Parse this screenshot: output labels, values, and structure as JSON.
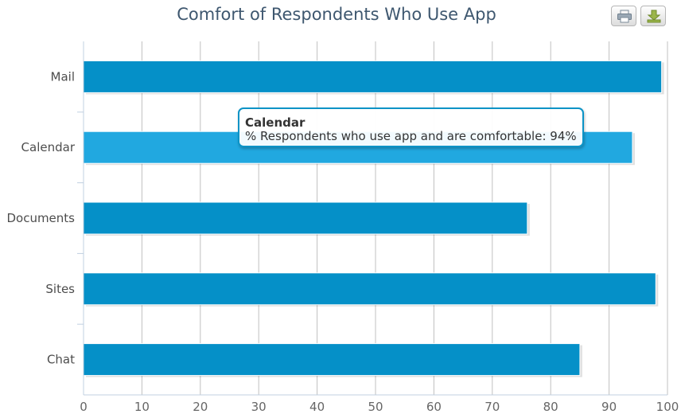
{
  "chart_data": {
    "type": "bar",
    "orientation": "horizontal",
    "title": "Comfort of Respondents Who Use App",
    "categories": [
      "Mail",
      "Calendar",
      "Documents",
      "Sites",
      "Chat"
    ],
    "series": [
      {
        "name": "% Respondents who use app and are comfortable",
        "values": [
          99,
          94,
          76,
          98,
          85
        ]
      }
    ],
    "xlim": [
      0,
      100
    ],
    "ticks": [
      "0",
      "10",
      "20",
      "30",
      "40",
      "50",
      "60",
      "70",
      "80",
      "90",
      "100"
    ],
    "grid": true,
    "legend": "none",
    "highlighted_category": "Calendar"
  },
  "tooltip": {
    "title": "Calendar",
    "line": "% Respondents who use app and are comfortable: 94%"
  },
  "colors": {
    "bar": "#0590C8",
    "bar_highlight": "#21A8E0",
    "grid": "#c0c0c0",
    "axis": "#c0d0e0",
    "title": "#3E576F"
  },
  "toolbar": {
    "print_icon": "print-icon",
    "export_icon": "download-icon"
  }
}
